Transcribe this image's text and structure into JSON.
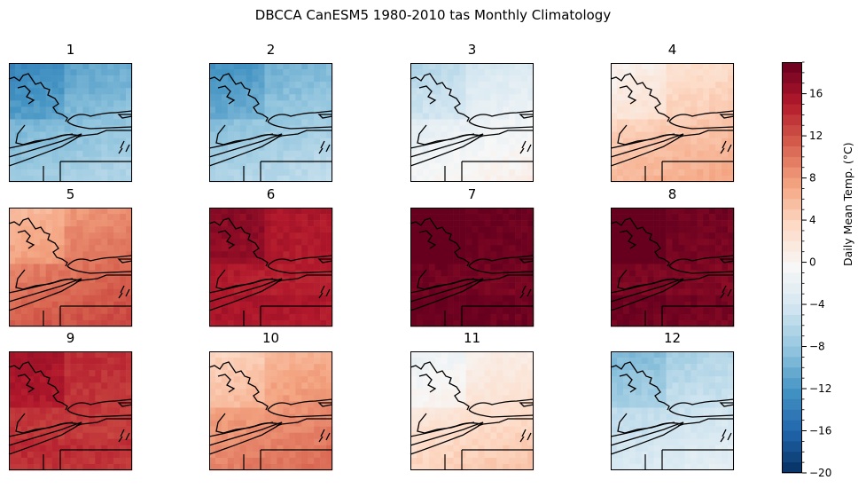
{
  "figure": {
    "title": "DBCCA CanESM5 1980-2010 tas Monthly Climatology"
  },
  "chart_data": {
    "type": "heatmap",
    "title": "DBCCA CanESM5 1980-2010 tas Monthly Climatology",
    "panels": [
      {
        "label": "1",
        "mean_temp_c": -9
      },
      {
        "label": "2",
        "mean_temp_c": -8
      },
      {
        "label": "3",
        "mean_temp_c": -2
      },
      {
        "label": "4",
        "mean_temp_c": 4.5
      },
      {
        "label": "5",
        "mean_temp_c": 10
      },
      {
        "label": "6",
        "mean_temp_c": 15
      },
      {
        "label": "7",
        "mean_temp_c": 18.5
      },
      {
        "label": "8",
        "mean_temp_c": 18
      },
      {
        "label": "9",
        "mean_temp_c": 13.5
      },
      {
        "label": "10",
        "mean_temp_c": 8
      },
      {
        "label": "11",
        "mean_temp_c": 2.5
      },
      {
        "label": "12",
        "mean_temp_c": -5
      }
    ],
    "colorbar": {
      "label": "Daily Mean Temp. (°C)",
      "colormap": "RdBu_r",
      "range": [
        -20,
        19
      ],
      "ticks": [
        -20,
        -16,
        -12,
        -8,
        -4,
        0,
        4,
        8,
        12,
        16
      ],
      "tick_labels": [
        "−20",
        "−16",
        "−12",
        "−8",
        "−4",
        "0",
        "4",
        "8",
        "12",
        "16"
      ]
    }
  }
}
